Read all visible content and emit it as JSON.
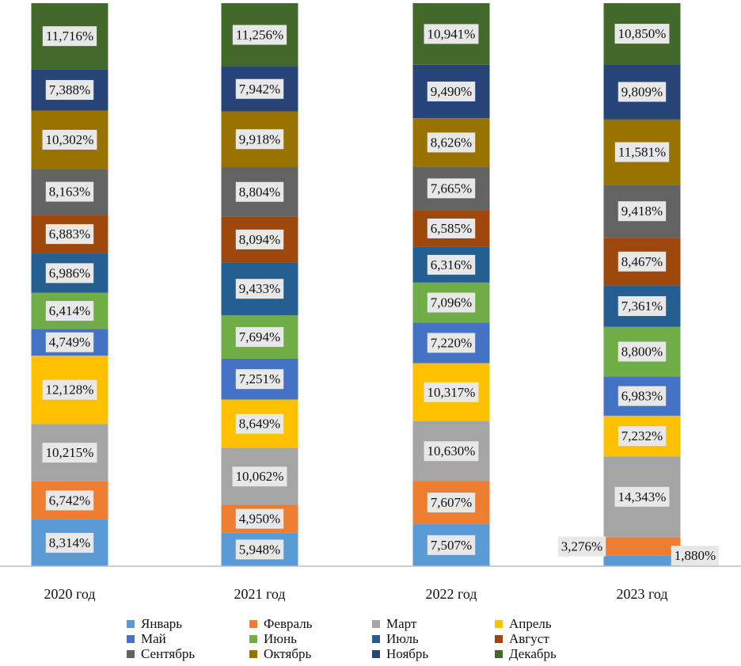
{
  "chart_data": {
    "type": "bar",
    "stacked": true,
    "percent": true,
    "categories": [
      "2020 год",
      "2021 год",
      "2022 год",
      "2023 год"
    ],
    "series": [
      {
        "name": "Январь",
        "color": "#5B9BD5",
        "values": [
          8.314,
          5.948,
          7.507,
          1.88
        ],
        "labels": [
          "8,314%",
          "5,948%",
          "7,507%",
          "1,880%"
        ]
      },
      {
        "name": "Февраль",
        "color": "#ED7D31",
        "values": [
          6.742,
          4.95,
          7.607,
          3.276
        ],
        "labels": [
          "6,742%",
          "4,950%",
          "7,607%",
          "3,276%"
        ]
      },
      {
        "name": "Март",
        "color": "#A5A5A5",
        "values": [
          10.215,
          10.062,
          10.63,
          14.343
        ],
        "labels": [
          "10,215%",
          "10,062%",
          "10,630%",
          "14,343%"
        ]
      },
      {
        "name": "Апрель",
        "color": "#FFC000",
        "values": [
          12.128,
          8.649,
          10.317,
          7.232
        ],
        "labels": [
          "12,128%",
          "8,649%",
          "10,317%",
          "7,232%"
        ]
      },
      {
        "name": "Май",
        "color": "#4472C4",
        "values": [
          4.749,
          7.251,
          7.22,
          6.983
        ],
        "labels": [
          "4,749%",
          "7,251%",
          "7,220%",
          "6,983%"
        ]
      },
      {
        "name": "Июнь",
        "color": "#70AD47",
        "values": [
          6.414,
          7.694,
          7.096,
          8.8
        ],
        "labels": [
          "6,414%",
          "7,694%",
          "7,096%",
          "8,800%"
        ]
      },
      {
        "name": "Июль",
        "color": "#255E91",
        "values": [
          6.986,
          9.433,
          6.316,
          7.361
        ],
        "labels": [
          "6,986%",
          "9,433%",
          "6,316%",
          "7,361%"
        ]
      },
      {
        "name": "Август",
        "color": "#9E480E",
        "values": [
          6.883,
          8.094,
          6.585,
          8.467
        ],
        "labels": [
          "6,883%",
          "8,094%",
          "6,585%",
          "8,467%"
        ]
      },
      {
        "name": "Сентябрь",
        "color": "#636363",
        "values": [
          8.163,
          8.804,
          7.665,
          9.418
        ],
        "labels": [
          "8,163%",
          "8,804%",
          "7,665%",
          "9,418%"
        ]
      },
      {
        "name": "Октябрь",
        "color": "#997300",
        "values": [
          10.302,
          9.918,
          8.626,
          11.581
        ],
        "labels": [
          "10,302%",
          "9,918%",
          "8,626%",
          "11,581%"
        ]
      },
      {
        "name": "Ноябрь",
        "color": "#264478",
        "values": [
          7.388,
          7.942,
          9.49,
          9.809
        ],
        "labels": [
          "7,388%",
          "7,942%",
          "9,490%",
          "9,809%"
        ]
      },
      {
        "name": "Декабрь",
        "color": "#43682B",
        "values": [
          11.716,
          11.256,
          10.941,
          10.85
        ],
        "labels": [
          "11,716%",
          "11,256%",
          "10,941%",
          "10,850%"
        ]
      }
    ],
    "legend_position": "bottom",
    "grid": false,
    "ylim": [
      0,
      100
    ]
  }
}
